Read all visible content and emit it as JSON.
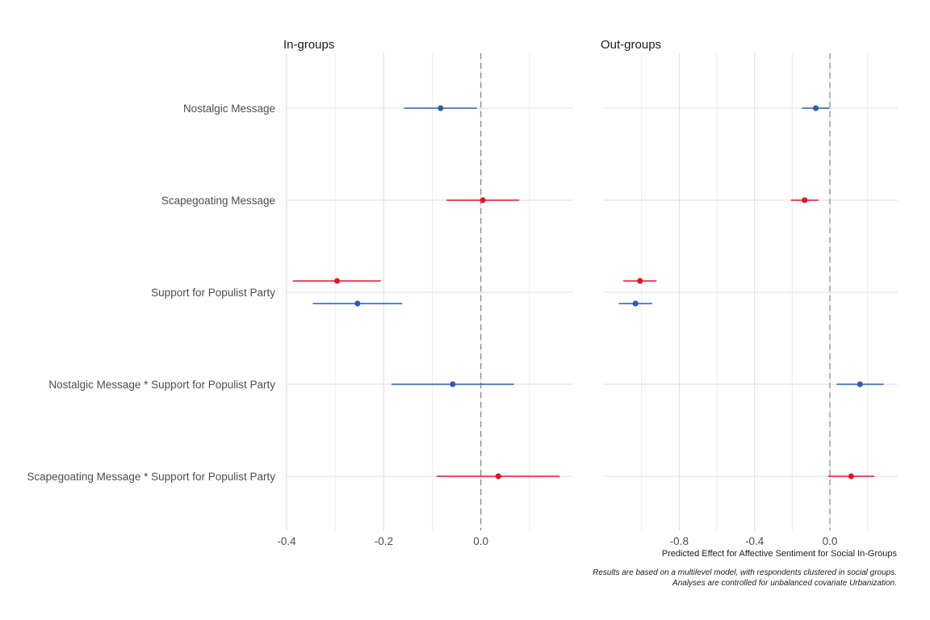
{
  "colors": {
    "blue": "#2a5db0",
    "red": "#e3142a"
  },
  "figure": {
    "x_axis_label": "Predicted Effect for Affective Sentiment for Social In-Groups",
    "caption_lines": [
      "Results are based on a multilevel model, with respondents clustered in social groups.",
      "Analyses are controlled for unbalanced covariate Urbanization."
    ]
  },
  "chart_data": [
    {
      "type": "scatter",
      "title": "In-groups",
      "xlim": [
        -0.4,
        0.19
      ],
      "x_ticks": [
        -0.4,
        -0.2,
        0.0
      ],
      "x_tick_labels": [
        "-0.4",
        "-0.2",
        "0.0"
      ],
      "reference_line_x": 0,
      "grid": true,
      "categories": [
        "Nostalgic Message",
        "Scapegoating Message",
        "Support for Populist Party",
        "Nostalgic Message * Support for Populist Party",
        "Scapegoating Message * Support for Populist Party"
      ],
      "estimates": [
        {
          "category": "Nostalgic Message",
          "color": "blue",
          "estimate": -0.083,
          "lower": -0.158,
          "upper": -0.008,
          "offset": 0
        },
        {
          "category": "Scapegoating Message",
          "color": "red",
          "estimate": 0.004,
          "lower": -0.071,
          "upper": 0.079,
          "offset": 0
        },
        {
          "category": "Support for Populist Party",
          "color": "red",
          "estimate": -0.296,
          "lower": -0.387,
          "upper": -0.206,
          "offset": -1
        },
        {
          "category": "Support for Populist Party",
          "color": "blue",
          "estimate": -0.254,
          "lower": -0.346,
          "upper": -0.162,
          "offset": 1
        },
        {
          "category": "Nostalgic Message * Support for Populist Party",
          "color": "blue",
          "estimate": -0.058,
          "lower": -0.184,
          "upper": 0.068,
          "offset": 0
        },
        {
          "category": "Scapegoating Message * Support for Populist Party",
          "color": "red",
          "estimate": 0.036,
          "lower": -0.091,
          "upper": 0.162,
          "offset": 0
        }
      ]
    },
    {
      "type": "scatter",
      "title": "Out-groups",
      "xlim": [
        -1.2,
        0.36
      ],
      "x_ticks": [
        -0.8,
        -0.4,
        0.0
      ],
      "x_tick_labels": [
        "-0.8",
        "-0.4",
        "0.0"
      ],
      "reference_line_x": 0,
      "grid": true,
      "categories": [
        "Nostalgic Message",
        "Scapegoating Message",
        "Support for Populist Party",
        "Nostalgic Message * Support for Populist Party",
        "Scapegoating Message * Support for Populist Party"
      ],
      "estimates": [
        {
          "category": "Nostalgic Message",
          "color": "blue",
          "estimate": -0.075,
          "lower": -0.148,
          "upper": -0.002,
          "offset": 0
        },
        {
          "category": "Scapegoating Message",
          "color": "red",
          "estimate": -0.134,
          "lower": -0.207,
          "upper": -0.06,
          "offset": 0
        },
        {
          "category": "Support for Populist Party",
          "color": "red",
          "estimate": -1.008,
          "lower": -1.097,
          "upper": -0.92,
          "offset": -1
        },
        {
          "category": "Support for Populist Party",
          "color": "blue",
          "estimate": -1.032,
          "lower": -1.121,
          "upper": -0.943,
          "offset": 1
        },
        {
          "category": "Nostalgic Message * Support for Populist Party",
          "color": "blue",
          "estimate": 0.16,
          "lower": 0.036,
          "upper": 0.285,
          "offset": 0
        },
        {
          "category": "Scapegoating Message * Support for Populist Party",
          "color": "red",
          "estimate": 0.113,
          "lower": -0.009,
          "upper": 0.236,
          "offset": 0
        }
      ]
    }
  ]
}
